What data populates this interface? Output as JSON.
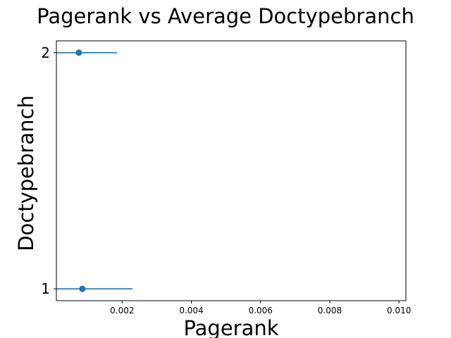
{
  "chart_data": {
    "type": "scatter",
    "title": "Pagerank vs Average Doctypebranch",
    "xlabel": "Pagerank",
    "ylabel": "Doctypebranch",
    "xlim": [
      0.0001,
      0.0102
    ],
    "ylim": [
      0.95,
      2.05
    ],
    "xticks": [
      0.002,
      0.004,
      0.006,
      0.008,
      0.01
    ],
    "xtick_labels": [
      "0.002",
      "0.004",
      "0.006",
      "0.008",
      "0.010"
    ],
    "yticks": [
      1,
      2
    ],
    "ytick_labels": [
      "1",
      "2"
    ],
    "grid": false,
    "color": "#1f77b4",
    "points": [
      {
        "x": 0.00085,
        "y": 1,
        "xerr_low": 0.0001,
        "xerr_high": 0.0023
      },
      {
        "x": 0.00075,
        "y": 2,
        "xerr_low": 0.0001,
        "xerr_high": 0.00185
      }
    ]
  }
}
